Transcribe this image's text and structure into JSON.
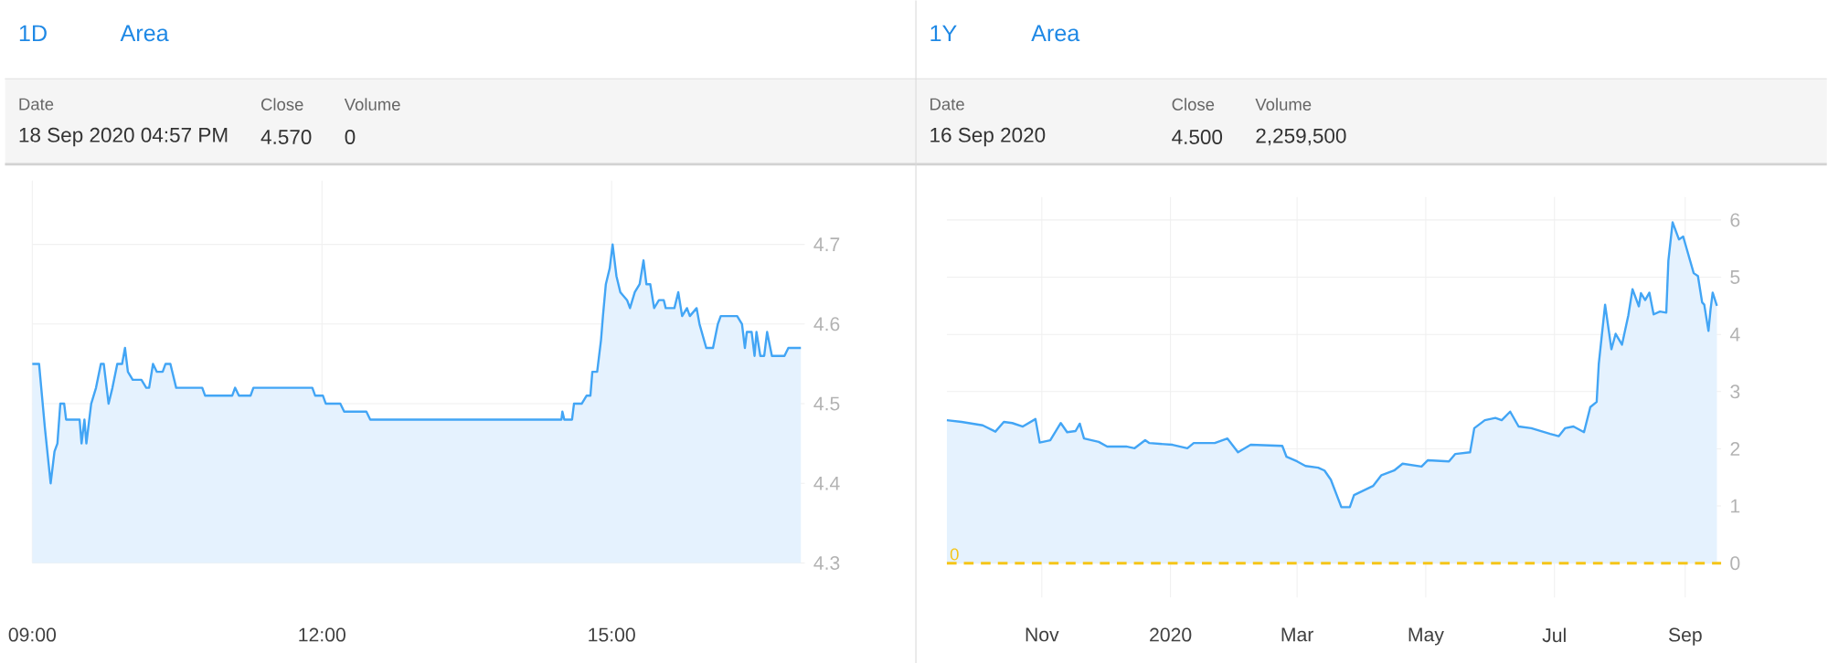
{
  "chart_data": [
    {
      "type": "area",
      "color": "#42a5f5",
      "grid": true,
      "x": [
        9.0,
        9.07,
        9.13,
        9.19,
        9.23,
        9.26,
        9.29,
        9.33,
        9.35,
        9.49,
        9.51,
        9.54,
        9.56,
        9.59,
        9.61,
        9.66,
        9.71,
        9.74,
        9.79,
        9.83,
        9.88,
        9.93,
        9.96,
        9.99,
        10.04,
        10.13,
        10.18,
        10.21,
        10.25,
        10.29,
        10.35,
        10.38,
        10.43,
        10.49,
        10.76,
        10.79,
        11.07,
        11.1,
        11.14,
        11.26,
        11.29,
        11.9,
        11.93,
        12.01,
        12.04,
        12.19,
        12.23,
        12.46,
        12.5,
        14.48,
        14.49,
        14.51,
        14.59,
        14.61,
        14.69,
        14.74,
        14.78,
        14.8,
        14.85,
        14.89,
        14.91,
        14.94,
        14.98,
        15.01,
        15.05,
        15.09,
        15.16,
        15.19,
        15.24,
        15.29,
        15.33,
        15.36,
        15.4,
        15.44,
        15.49,
        15.54,
        15.56,
        15.65,
        15.69,
        15.73,
        15.78,
        15.81,
        15.88,
        15.91,
        15.98,
        16.05,
        16.1,
        16.13,
        16.3,
        16.35,
        16.38,
        16.4,
        16.45,
        16.48,
        16.5,
        16.54,
        16.58,
        16.61,
        16.66,
        16.79,
        16.83,
        16.96
      ],
      "values": [
        4.55,
        4.55,
        4.47,
        4.4,
        4.44,
        4.45,
        4.5,
        4.5,
        4.48,
        4.48,
        4.45,
        4.48,
        4.45,
        4.48,
        4.5,
        4.52,
        4.55,
        4.55,
        4.5,
        4.52,
        4.55,
        4.55,
        4.57,
        4.54,
        4.53,
        4.53,
        4.52,
        4.52,
        4.55,
        4.54,
        4.54,
        4.55,
        4.55,
        4.52,
        4.52,
        4.51,
        4.51,
        4.52,
        4.51,
        4.51,
        4.52,
        4.52,
        4.51,
        4.51,
        4.5,
        4.5,
        4.49,
        4.49,
        4.48,
        4.48,
        4.49,
        4.48,
        4.48,
        4.5,
        4.5,
        4.51,
        4.51,
        4.54,
        4.54,
        4.58,
        4.61,
        4.65,
        4.67,
        4.7,
        4.66,
        4.64,
        4.63,
        4.62,
        4.64,
        4.65,
        4.68,
        4.65,
        4.65,
        4.62,
        4.63,
        4.63,
        4.62,
        4.62,
        4.64,
        4.61,
        4.62,
        4.61,
        4.62,
        4.6,
        4.57,
        4.57,
        4.6,
        4.61,
        4.61,
        4.6,
        4.57,
        4.59,
        4.59,
        4.56,
        4.59,
        4.56,
        4.56,
        4.59,
        4.56,
        4.56,
        4.57,
        4.57
      ],
      "xlim": [
        9,
        17
      ],
      "ylim": [
        4.3,
        4.78
      ],
      "xticks": [
        {
          "value": 9,
          "label": "09:00"
        },
        {
          "value": 12,
          "label": "12:00"
        },
        {
          "value": 15,
          "label": "15:00"
        }
      ],
      "yticks": [
        4.3,
        4.4,
        4.5,
        4.6,
        4.7
      ],
      "annotations": [
        "1D",
        "Area",
        "Date",
        "18 Sep 2020 04:57 PM",
        "Close",
        "4.570",
        "Volume",
        "0"
      ]
    },
    {
      "type": "area",
      "color": "#42a5f5",
      "grid": true,
      "x": [
        "2019-09-17",
        "2019-09-24",
        "2019-10-04",
        "2019-10-10",
        "2019-10-14",
        "2019-10-18",
        "2019-10-23",
        "2019-10-29",
        "2019-10-31",
        "2019-11-05",
        "2019-11-10",
        "2019-11-13",
        "2019-11-17",
        "2019-11-19",
        "2019-11-21",
        "2019-11-28",
        "2019-12-02",
        "2019-12-11",
        "2019-12-15",
        "2019-12-20",
        "2019-12-22",
        "2020-01-02",
        "2020-01-09",
        "2020-01-12",
        "2020-01-22",
        "2020-01-28",
        "2020-02-02",
        "2020-02-08",
        "2020-02-23",
        "2020-02-25",
        "2020-03-01",
        "2020-03-05",
        "2020-03-11",
        "2020-03-14",
        "2020-03-17",
        "2020-03-22",
        "2020-03-26",
        "2020-03-28",
        "2020-04-06",
        "2020-04-10",
        "2020-04-16",
        "2020-04-20",
        "2020-04-29",
        "2020-05-02",
        "2020-05-12",
        "2020-05-15",
        "2020-05-22",
        "2020-05-24",
        "2020-05-29",
        "2020-06-03",
        "2020-06-06",
        "2020-06-10",
        "2020-06-14",
        "2020-06-20",
        "2020-06-29",
        "2020-07-03",
        "2020-07-06",
        "2020-07-10",
        "2020-07-15",
        "2020-07-18",
        "2020-07-21",
        "2020-07-22",
        "2020-07-25",
        "2020-07-28",
        "2020-07-30",
        "2020-08-02",
        "2020-08-05",
        "2020-08-07",
        "2020-08-10",
        "2020-08-11",
        "2020-08-13",
        "2020-08-15",
        "2020-08-17",
        "2020-08-20",
        "2020-08-23",
        "2020-08-24",
        "2020-08-26",
        "2020-08-29",
        "2020-08-31",
        "2020-09-05",
        "2020-09-07",
        "2020-09-09",
        "2020-09-10",
        "2020-09-12",
        "2020-09-13",
        "2020-09-14",
        "2020-09-16"
      ],
      "values": [
        2.5,
        2.47,
        2.41,
        2.3,
        2.47,
        2.45,
        2.39,
        2.52,
        2.11,
        2.15,
        2.45,
        2.29,
        2.31,
        2.44,
        2.18,
        2.12,
        2.04,
        2.04,
        2.01,
        2.15,
        2.1,
        2.07,
        2.01,
        2.1,
        2.1,
        2.18,
        1.94,
        2.07,
        2.05,
        1.86,
        1.78,
        1.7,
        1.67,
        1.62,
        1.46,
        0.98,
        0.98,
        1.19,
        1.35,
        1.54,
        1.62,
        1.74,
        1.69,
        1.8,
        1.78,
        1.91,
        1.94,
        2.36,
        2.5,
        2.54,
        2.5,
        2.65,
        2.39,
        2.36,
        2.26,
        2.22,
        2.36,
        2.39,
        2.29,
        2.73,
        2.82,
        3.48,
        4.52,
        3.74,
        4.01,
        3.82,
        4.33,
        4.79,
        4.49,
        4.72,
        4.6,
        4.73,
        4.35,
        4.4,
        4.38,
        5.29,
        5.96,
        5.66,
        5.71,
        5.07,
        5.02,
        4.56,
        4.52,
        4.06,
        4.44,
        4.73,
        4.5
      ],
      "xlim": [
        "2019-09-17",
        "2020-09-18"
      ],
      "ylim": [
        -0.6,
        6.4
      ],
      "xticks": [
        {
          "value": "2019-11-01",
          "label": "Nov"
        },
        {
          "value": "2020-01-01",
          "label": "2020"
        },
        {
          "value": "2020-03-01",
          "label": "Mar"
        },
        {
          "value": "2020-05-01",
          "label": "May"
        },
        {
          "value": "2020-07-01",
          "label": "Jul"
        },
        {
          "value": "2020-09-01",
          "label": "Sep"
        }
      ],
      "yticks": [
        0,
        1,
        2,
        3,
        4,
        5,
        6
      ],
      "ref_lines": [
        {
          "axis": "y",
          "value": 0,
          "label": "0",
          "color": "#f5c518",
          "line_style": "dashed"
        }
      ],
      "annotations": [
        "1Y",
        "Area",
        "Date",
        "16 Sep 2020",
        "Close",
        "4.500",
        "Volume",
        "2,259,500"
      ]
    }
  ]
}
